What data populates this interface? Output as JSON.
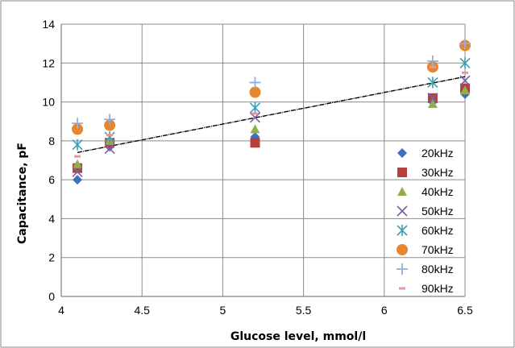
{
  "chart_data": {
    "type": "scatter",
    "title": "",
    "xlabel": "Glucose level, mmol/l",
    "ylabel": "Capacitance, pF",
    "xlim": [
      4,
      6.5
    ],
    "ylim": [
      0,
      14
    ],
    "x_ticks": [
      "4",
      "4.5",
      "5",
      "5.5",
      "6",
      "6.5"
    ],
    "y_ticks": [
      "0",
      "2",
      "4",
      "6",
      "8",
      "10",
      "12",
      "14"
    ],
    "x_tick_values": [
      4,
      4.5,
      5,
      5.5,
      6,
      6.5
    ],
    "y_tick_values": [
      0,
      2,
      4,
      6,
      8,
      10,
      12,
      14
    ],
    "grid": true,
    "legend_position": "right",
    "series": [
      {
        "name": "20kHz",
        "marker": "diamond",
        "color": "#3F6FBF",
        "x": [
          4.1,
          4.3,
          5.2,
          6.3,
          6.5
        ],
        "y": [
          6.0,
          7.7,
          8.2,
          10.0,
          10.4
        ]
      },
      {
        "name": "30kHz",
        "marker": "square",
        "color": "#B5403E",
        "x": [
          4.1,
          4.3,
          5.2,
          6.3,
          6.5
        ],
        "y": [
          6.6,
          7.9,
          7.9,
          10.2,
          10.7
        ]
      },
      {
        "name": "40kHz",
        "marker": "triangle",
        "color": "#8FB04A",
        "x": [
          4.1,
          4.3,
          5.2,
          6.3,
          6.5
        ],
        "y": [
          6.8,
          8.0,
          8.6,
          9.9,
          10.6
        ]
      },
      {
        "name": "50kHz",
        "marker": "x",
        "color": "#7A5FA0",
        "x": [
          4.1,
          4.3,
          5.2,
          6.3,
          6.5
        ],
        "y": [
          6.4,
          7.6,
          9.2,
          10.2,
          11.1
        ]
      },
      {
        "name": "60kHz",
        "marker": "asterisk",
        "color": "#3C9DB5",
        "x": [
          4.1,
          4.3,
          5.2,
          6.3,
          6.5
        ],
        "y": [
          7.8,
          8.2,
          9.7,
          11.0,
          12.0
        ]
      },
      {
        "name": "70kHz",
        "marker": "circle",
        "color": "#E6862E",
        "x": [
          4.1,
          4.3,
          5.2,
          6.3,
          6.5
        ],
        "y": [
          8.6,
          8.8,
          10.5,
          11.8,
          12.9
        ]
      },
      {
        "name": "80kHz",
        "marker": "plus",
        "color": "#94AEDB",
        "x": [
          4.1,
          4.3,
          5.2,
          6.3,
          6.5
        ],
        "y": [
          8.9,
          9.1,
          11.0,
          12.1,
          13.0
        ]
      },
      {
        "name": "90kHz",
        "marker": "dash",
        "color": "#E39A9A",
        "x": [
          4.1,
          4.3,
          5.2,
          6.3,
          6.5
        ],
        "y": [
          7.2,
          8.3,
          9.4,
          11.8,
          11.5
        ]
      }
    ],
    "trendline": {
      "type": "linear",
      "color": "#000000",
      "x": [
        4.1,
        6.5
      ],
      "y": [
        7.4,
        11.3
      ]
    }
  }
}
